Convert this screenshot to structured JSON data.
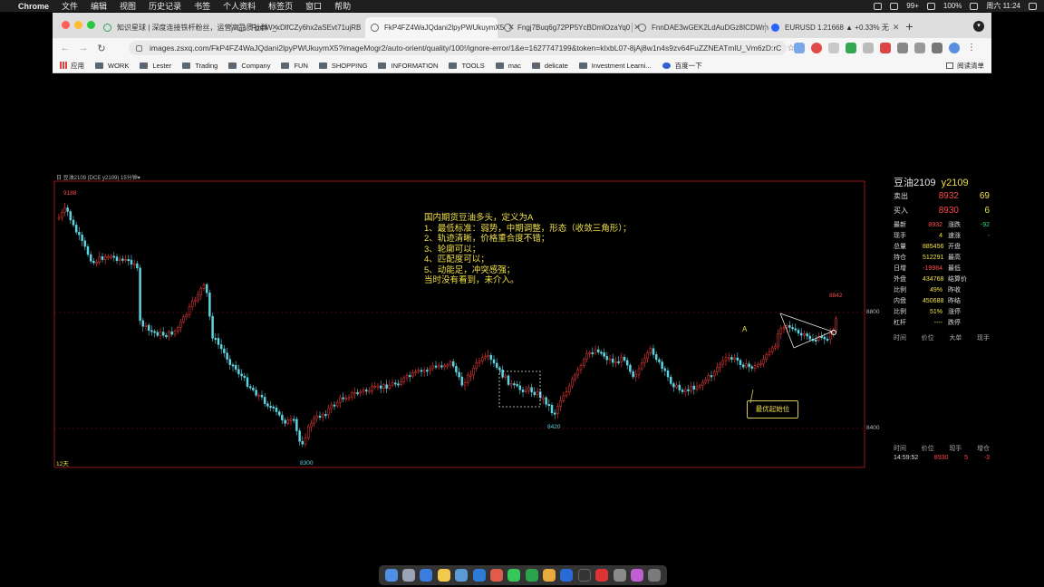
{
  "menubar": {
    "apple_icon": "apple-icon",
    "items": [
      "Chrome",
      "文件",
      "编辑",
      "视图",
      "历史记录",
      "书签",
      "个人资料",
      "标签页",
      "窗口",
      "帮助"
    ],
    "status": {
      "badge": "99+",
      "battery": "100%",
      "datetime": "周六 11:24"
    }
  },
  "tabs": [
    {
      "title": "知识星球 | 深度连接铁杆粉丝，运营高品质社群",
      "active": false
    },
    {
      "title": "FpmW_xDlfCZy6hx2aSEvt71ujRB",
      "active": false
    },
    {
      "title": "FkP4FZ4WaJQdani2lpyPWUkuymX5",
      "active": true
    },
    {
      "title": "Fngj7Buq6g72PP5YcBDmlOzaYq0",
      "active": false
    },
    {
      "title": "FnnDAE3wGEK2LdAuDGz8ICDWm",
      "active": false
    },
    {
      "title": "EURUSD 1.21668 ▲ +0.33% 无",
      "active": false
    }
  ],
  "omnibox": {
    "url": "images.zsxq.com/FkP4FZ4WaJQdani2lpyPWUkuymX5?imageMogr2/auto-orient/quality/100!/ignore-error/1&e=1627747199&token=kIxbL07-8jAj8w1n4s9zv64FuZZNEATmlU_Vm6zD:rC"
  },
  "bookmarks": {
    "apps_label": "应用",
    "items": [
      "WORK",
      "Lester",
      "Trading",
      "Company",
      "FUN",
      "SHOPPING",
      "INFORMATION",
      "TOOLS",
      "mac",
      "delicate",
      "Investment Learni...",
      "百度一下"
    ],
    "reading_list": "阅读清单"
  },
  "chart": {
    "header": "日 豆油2109 (DCE y2109)   15分钟▾",
    "high_label": "9188",
    "low_label": "8300",
    "mid_low_label": "8420",
    "recent_label": "8842",
    "axis_top": "8800",
    "axis_bottom": "8400",
    "footer": "12天",
    "marker": "A",
    "callout": "最优起始位",
    "annotation": [
      "国内期货豆油多头，定义为A",
      "1、最低标准：弱势，中期调整，形态（收敛三角形）；",
      "2、轨迹清晰，价格重合度不错；",
      "3、轮廓可以；",
      "4、匹配度可以；",
      "5、动能足，冲突感强；",
      "当时没有看到，未介入。"
    ]
  },
  "quote": {
    "name": "豆油2109",
    "code": "y2109",
    "sell_label": "卖出",
    "sell_price": "8932",
    "sell_vol": "69",
    "buy_label": "买入",
    "buy_price": "8930",
    "buy_vol": "6",
    "rows": [
      {
        "k": "最新",
        "v": "8932",
        "k2": "涨跌",
        "v2": "-92"
      },
      {
        "k": "现手",
        "v": "4",
        "k2": "速涨",
        "v2": "-"
      },
      {
        "k": "总量",
        "v": "885456",
        "k2": "开盘",
        "v2": ""
      },
      {
        "k": "持仓",
        "v": "512291",
        "k2": "最高",
        "v2": ""
      },
      {
        "k": "日增",
        "v": "-19984",
        "k2": "最低",
        "v2": ""
      },
      {
        "k": "外盘",
        "v": "434768",
        "k2": "结算价",
        "v2": ""
      },
      {
        "k": "比例",
        "v": "49%",
        "k2": "昨收",
        "v2": ""
      },
      {
        "k": "内盘",
        "v": "450688",
        "k2": "昨结",
        "v2": ""
      },
      {
        "k": "比例",
        "v": "51%",
        "k2": "涨停",
        "v2": ""
      },
      {
        "k": "杠杆",
        "v": "----",
        "k2": "跌停",
        "v2": ""
      }
    ],
    "ticks_head1": [
      "时间",
      "价位",
      "大单",
      "现手"
    ],
    "ticks_head2": [
      "时间",
      "价位",
      "现手",
      "增仓"
    ],
    "tick_row": [
      "14:59:52",
      "8930",
      "5",
      "-3"
    ]
  }
}
